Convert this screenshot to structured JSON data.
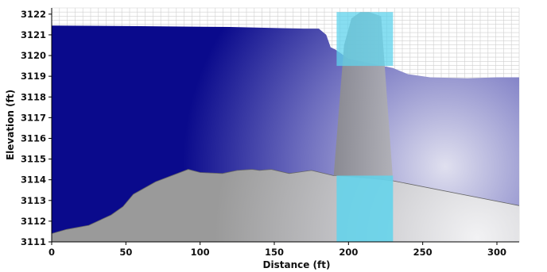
{
  "chart_data": {
    "type": "area",
    "title": "",
    "xlabel": "Distance (ft)",
    "ylabel": "Elevation (ft)",
    "xlim": [
      0,
      315
    ],
    "ylim": [
      3111,
      3122.3
    ],
    "xticks": [
      0,
      50,
      100,
      150,
      200,
      250,
      300
    ],
    "yticks": [
      3111,
      3112,
      3113,
      3114,
      3115,
      3116,
      3117,
      3118,
      3119,
      3120,
      3121,
      3122
    ],
    "grid": true,
    "legend": "none",
    "colors": {
      "water_dark": "#0a0a8c",
      "water_light": "#e0e0ef",
      "ground_dark": "#9a9a9a",
      "ground_light": "#f2f2f4",
      "pier": "#7a7a7a",
      "highlight": "#5fd3ec"
    },
    "water_surface": {
      "x": [
        0,
        60,
        120,
        170,
        180,
        185,
        188,
        191,
        200,
        230,
        240,
        255,
        280,
        300,
        315
      ],
      "y": [
        3121.45,
        3121.42,
        3121.38,
        3121.3,
        3121.3,
        3121.0,
        3120.4,
        3120.3,
        3119.85,
        3119.4,
        3119.1,
        3118.95,
        3118.9,
        3118.95,
        3118.95
      ]
    },
    "ground_profile": {
      "x": [
        0,
        10,
        25,
        40,
        48,
        55,
        70,
        92,
        100,
        115,
        125,
        135,
        140,
        148,
        160,
        175,
        190,
        200,
        230,
        315
      ],
      "y": [
        3111.4,
        3111.6,
        3111.8,
        3112.3,
        3112.7,
        3113.3,
        3113.9,
        3114.5,
        3114.35,
        3114.3,
        3114.45,
        3114.5,
        3114.45,
        3114.5,
        3114.3,
        3114.45,
        3114.2,
        3114.2,
        3113.95,
        3112.75
      ]
    },
    "pier": {
      "x": [
        190,
        197,
        202,
        208,
        214,
        222,
        230
      ],
      "y": [
        3114.2,
        3120.5,
        3121.8,
        3122.1,
        3122.1,
        3121.9,
        3113.95
      ]
    },
    "highlights": [
      {
        "x": [
          192,
          230
        ],
        "y": [
          3111,
          3114.2
        ]
      },
      {
        "x": [
          192,
          230
        ],
        "y": [
          3119.5,
          3122.1
        ]
      }
    ]
  }
}
